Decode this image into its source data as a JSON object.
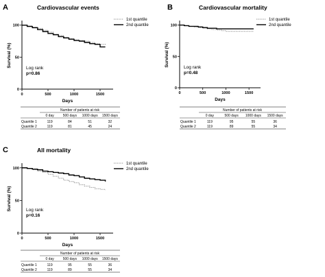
{
  "chart_data": [
    {
      "type": "line",
      "panel_letter": "A",
      "title": "Cardiovascular events",
      "xlabel": "Days",
      "ylabel": "Survival (%)",
      "xlim": [
        0,
        1750
      ],
      "ylim": [
        0,
        105
      ],
      "xticks": [
        "0",
        "500",
        "1000",
        "1500"
      ],
      "yticks": [
        "0",
        "50",
        "100"
      ],
      "legend": [
        "1st quantile",
        "2nd quantile"
      ],
      "annotation": "Log rank",
      "pvalue": "p=0.86",
      "series": [
        {
          "name": "1st quantile",
          "style": "dotted",
          "x": [
            0,
            100,
            200,
            300,
            400,
            500,
            600,
            700,
            800,
            900,
            1000,
            1100,
            1200,
            1300,
            1400,
            1500,
            1600
          ],
          "y": [
            100,
            99,
            97,
            95,
            92,
            89,
            86,
            84,
            81,
            79,
            77,
            76,
            75,
            73,
            71,
            70,
            69
          ]
        },
        {
          "name": "2nd quantile",
          "style": "solid",
          "x": [
            0,
            100,
            200,
            300,
            400,
            500,
            600,
            700,
            800,
            900,
            1000,
            1100,
            1200,
            1300,
            1400,
            1500,
            1600
          ],
          "y": [
            100,
            98,
            96,
            93,
            90,
            87,
            85,
            82,
            80,
            78,
            76,
            75,
            73,
            71,
            70,
            66,
            66
          ]
        }
      ],
      "risk_table": {
        "heading": "Number of patients at risk",
        "columns": [
          "0 day",
          "500 days",
          "1000 days",
          "1500 days"
        ],
        "rows": [
          {
            "label": "Quantile 1",
            "values": [
              "119",
              "84",
              "51",
              "32"
            ]
          },
          {
            "label": "Quantile 2",
            "values": [
              "119",
              "81",
              "45",
              "24"
            ]
          }
        ]
      }
    },
    {
      "type": "line",
      "panel_letter": "B",
      "title": "Cardiovascular mortality",
      "xlabel": "Days",
      "ylabel": "Survival (%)",
      "xlim": [
        0,
        1750
      ],
      "ylim": [
        0,
        105
      ],
      "xticks": [
        "0",
        "500",
        "1000",
        "1500"
      ],
      "yticks": [
        "0",
        "50",
        "100"
      ],
      "legend": [
        "1st quantile",
        "2nd quantile"
      ],
      "annotation": "Log rank",
      "pvalue": "p=0.48",
      "series": [
        {
          "name": "1st quantile",
          "style": "dotted",
          "x": [
            0,
            100,
            200,
            300,
            400,
            500,
            600,
            700,
            800,
            900,
            1000,
            1100,
            1200,
            1300,
            1400,
            1500,
            1600
          ],
          "y": [
            100,
            99,
            98,
            97,
            96,
            95,
            94,
            93,
            92,
            91,
            90,
            90,
            90,
            90,
            90,
            90,
            90
          ]
        },
        {
          "name": "2nd quantile",
          "style": "solid",
          "x": [
            0,
            100,
            200,
            300,
            400,
            500,
            600,
            700,
            800,
            900,
            1000,
            1100,
            1200,
            1300,
            1400,
            1500,
            1600
          ],
          "y": [
            100,
            99,
            98,
            98,
            97,
            96,
            95,
            95,
            94,
            94,
            94,
            94,
            94,
            94,
            94,
            94,
            94
          ]
        }
      ],
      "risk_table": {
        "heading": "Number of patients at risk",
        "columns": [
          "0 day",
          "500 days",
          "1000 days",
          "1500 days"
        ],
        "rows": [
          {
            "label": "Quantile 1",
            "values": [
              "119",
              "95",
              "55",
              "36"
            ]
          },
          {
            "label": "Quantile 2",
            "values": [
              "119",
              "89",
              "55",
              "34"
            ]
          }
        ]
      }
    },
    {
      "type": "line",
      "panel_letter": "C",
      "title": "All mortality",
      "xlabel": "Days",
      "ylabel": "Survival (%)",
      "xlim": [
        0,
        1750
      ],
      "ylim": [
        0,
        105
      ],
      "xticks": [
        "0",
        "500",
        "1000",
        "1500"
      ],
      "yticks": [
        "0",
        "50",
        "100"
      ],
      "legend": [
        "1st quantile",
        "2nd quantile"
      ],
      "annotation": "Log rank",
      "pvalue": "p=0.16",
      "series": [
        {
          "name": "1st quantile",
          "style": "dotted",
          "x": [
            0,
            100,
            200,
            300,
            400,
            500,
            600,
            700,
            800,
            900,
            1000,
            1100,
            1200,
            1300,
            1400,
            1500,
            1600
          ],
          "y": [
            100,
            99,
            97,
            95,
            93,
            90,
            87,
            84,
            81,
            79,
            77,
            74,
            72,
            70,
            68,
            67,
            66
          ]
        },
        {
          "name": "2nd quantile",
          "style": "solid",
          "x": [
            0,
            100,
            200,
            300,
            400,
            500,
            600,
            700,
            800,
            900,
            1000,
            1100,
            1200,
            1300,
            1400,
            1500,
            1600
          ],
          "y": [
            100,
            99,
            98,
            97,
            95,
            94,
            93,
            92,
            91,
            89,
            88,
            86,
            84,
            83,
            82,
            81,
            79
          ]
        }
      ],
      "risk_table": {
        "heading": "Number of patients at risk",
        "columns": [
          "0 day",
          "500 days",
          "1000 days",
          "1500 days"
        ],
        "rows": [
          {
            "label": "Quantile 1",
            "values": [
              "119",
              "95",
              "55",
              "36"
            ]
          },
          {
            "label": "Quantile 2",
            "values": [
              "119",
              "89",
              "55",
              "34"
            ]
          }
        ]
      }
    }
  ]
}
